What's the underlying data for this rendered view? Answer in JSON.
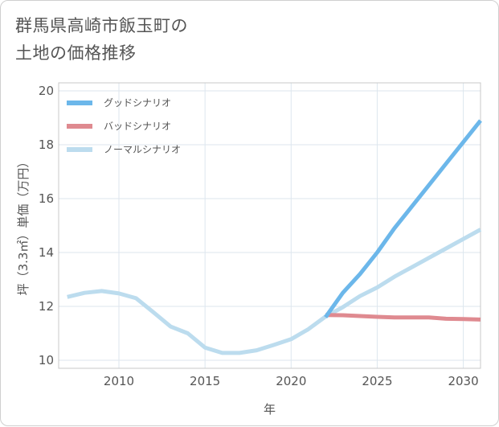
{
  "title": "群馬県高崎市飯玉町の\n土地の価格推移",
  "chart_data": {
    "type": "line",
    "xlabel": "年",
    "ylabel": "坪（3.3㎡）単価（万円）",
    "xlim": [
      2006.5,
      2031
    ],
    "ylim": [
      9.7,
      20.3
    ],
    "x_ticks": [
      "2010",
      "2015",
      "2020",
      "2025",
      "2030"
    ],
    "y_ticks": [
      "10",
      "12",
      "14",
      "16",
      "18",
      "20"
    ],
    "grid": true,
    "legend_position": "top-left",
    "series": [
      {
        "name": "グッドシナリオ",
        "color": "#6cb7ea",
        "x": [
          2022,
          2023,
          2024,
          2025,
          2026,
          2027,
          2028,
          2029,
          2030,
          2031
        ],
        "y": [
          11.6,
          12.5,
          13.2,
          14.0,
          14.9,
          15.7,
          16.5,
          17.3,
          18.1,
          18.9
        ]
      },
      {
        "name": "バッドシナリオ",
        "color": "#df8a90",
        "x": [
          2022,
          2023,
          2024,
          2025,
          2026,
          2027,
          2028,
          2029,
          2030,
          2031
        ],
        "y": [
          11.68,
          11.67,
          11.64,
          11.61,
          11.59,
          11.59,
          11.59,
          11.54,
          11.53,
          11.51
        ]
      },
      {
        "name": "ノーマルシナリオ",
        "color": "#bcdcee",
        "x": [
          2007,
          2008,
          2009,
          2010,
          2011,
          2012,
          2013,
          2014,
          2015,
          2016,
          2017,
          2018,
          2019,
          2020,
          2021,
          2022,
          2023,
          2024,
          2025,
          2026,
          2027,
          2028,
          2029,
          2030,
          2031
        ],
        "y": [
          12.35,
          12.5,
          12.57,
          12.48,
          12.3,
          11.78,
          11.25,
          11.0,
          10.47,
          10.27,
          10.27,
          10.37,
          10.57,
          10.78,
          11.15,
          11.62,
          11.97,
          12.38,
          12.7,
          13.1,
          13.45,
          13.8,
          14.15,
          14.5,
          14.85
        ]
      }
    ]
  }
}
